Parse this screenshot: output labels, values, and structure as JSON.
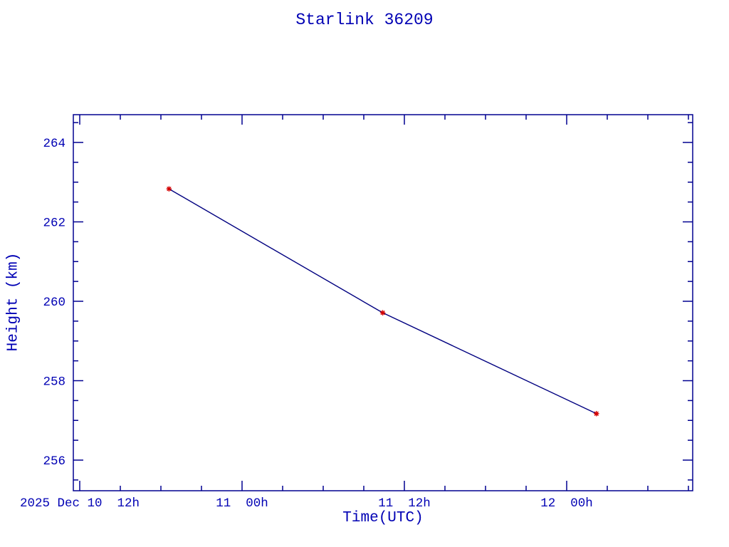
{
  "chart_data": {
    "type": "line",
    "title": "Starlink 36209",
    "xlabel": "Time(UTC)",
    "ylabel": "Height (km)",
    "x_axis": {
      "unit": "hours after first major tick (2025 Dec 10 12h UTC)",
      "major_ticks": [
        {
          "hours": 0,
          "label": "2025 Dec 10  12h"
        },
        {
          "hours": 12,
          "label": "11  00h"
        },
        {
          "hours": 24,
          "label": "11  12h"
        },
        {
          "hours": 36,
          "label": "12  00h"
        }
      ],
      "minor_step_hours": 3,
      "range_hours": [
        -0.47,
        45.32
      ]
    },
    "y_axis": {
      "major_ticks": [
        256,
        258,
        260,
        262,
        264
      ],
      "minor_step_km": 0.5,
      "range_km": [
        255.23,
        264.7
      ]
    },
    "series": [
      {
        "name": "height",
        "marker": "asterisk",
        "points": [
          {
            "hours": 6.6,
            "km": 262.83
          },
          {
            "hours": 22.4,
            "km": 259.71
          },
          {
            "hours": 38.2,
            "km": 257.17
          }
        ]
      }
    ],
    "grid": false,
    "legend": "none",
    "colors": {
      "axis": "#000090",
      "text": "#0000b4",
      "line": "#000080",
      "marker": "#d40000",
      "background": "#ffffff"
    }
  }
}
